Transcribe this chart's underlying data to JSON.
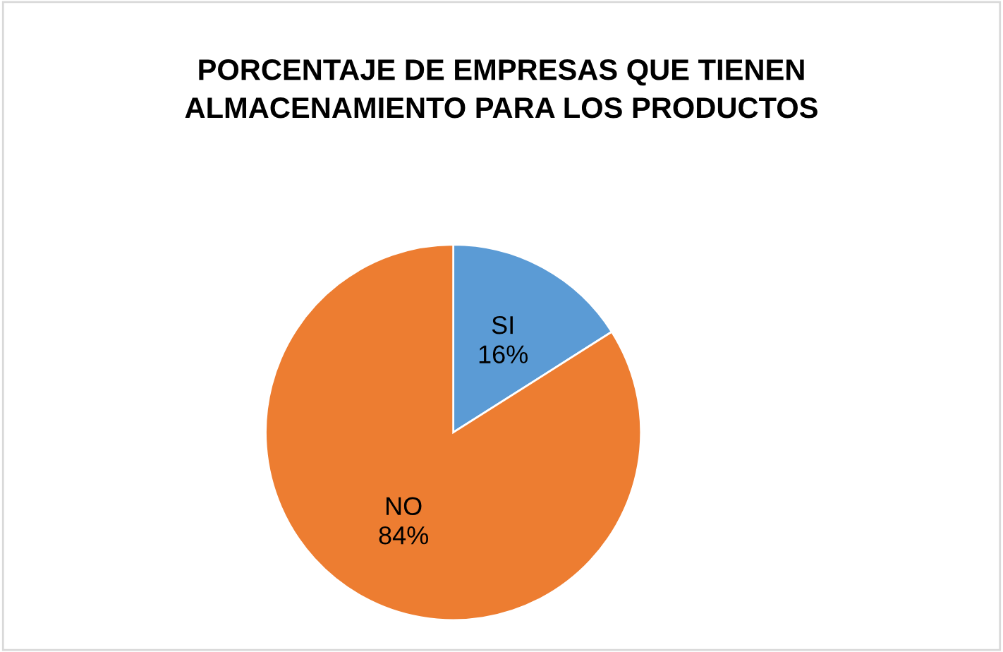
{
  "chart_data": {
    "type": "pie",
    "title": "PORCENTAJE DE EMPRESAS QUE TIENEN\nALMACENAMIENTO PARA LOS PRODUCTOS",
    "categories": [
      "SI",
      "NO"
    ],
    "values": [
      16,
      84
    ],
    "colors": [
      "#5b9bd5",
      "#ed7d31"
    ],
    "value_labels": [
      "16%",
      "84%"
    ],
    "legend": false
  }
}
